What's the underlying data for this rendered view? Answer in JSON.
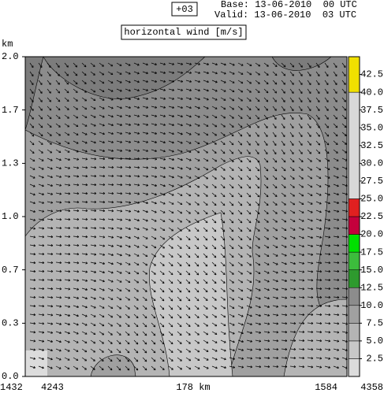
{
  "header": {
    "forecast_step": "+03",
    "base": "Base: 13-06-2010  00 UTC",
    "valid": "Valid: 13-06-2010  03 UTC",
    "title": "horizontal wind [m/s]"
  },
  "plot": {
    "y_label": "km",
    "ylim": [
      0,
      2
    ],
    "yticks": [
      {
        "value": 0,
        "label": "0.0"
      },
      {
        "value": 0.333,
        "label": "0.3"
      },
      {
        "value": 0.667,
        "label": "0.7"
      },
      {
        "value": 1,
        "label": "1.0"
      },
      {
        "value": 1.333,
        "label": "1.3"
      },
      {
        "value": 1.667,
        "label": "1.7"
      },
      {
        "value": 2,
        "label": "2.0"
      }
    ],
    "x_labels": [
      "1432",
      "4243",
      "178 km",
      "1584",
      "4358"
    ]
  },
  "colorbar": {
    "lim": [
      0,
      45
    ],
    "ticks": [
      2.5,
      {
        "value": 5,
        "label": "5.0"
      },
      7.5,
      {
        "value": 10,
        "label": "10.0"
      },
      12.5,
      {
        "value": 15,
        "label": "15.0"
      },
      17.5,
      {
        "value": 20,
        "label": "20.0"
      },
      22.5,
      {
        "value": 25,
        "label": "25.0"
      },
      27.5,
      {
        "value": 30,
        "label": "30.0"
      },
      32.5,
      {
        "value": 35,
        "label": "35.0"
      },
      37.5,
      {
        "value": 40,
        "label": "40.0"
      },
      42.5
    ],
    "bands": [
      {
        "from": 0,
        "to": 2.5,
        "color": "#dcdcdc"
      },
      {
        "from": 2.5,
        "to": 5,
        "color": "#c8c8c8"
      },
      {
        "from": 5,
        "to": 7.5,
        "color": "#b4b4b4"
      },
      {
        "from": 7.5,
        "to": 10,
        "color": "#a0a0a0"
      },
      {
        "from": 10,
        "to": 12.5,
        "color": "#8c8c8c"
      },
      {
        "from": 12.5,
        "to": 15,
        "color": "#2e9a2e"
      },
      {
        "from": 15,
        "to": 17.5,
        "color": "#3cbc3c"
      },
      {
        "from": 17.5,
        "to": 20,
        "color": "#00e000"
      },
      {
        "from": 20,
        "to": 22.5,
        "color": "#c4003c"
      },
      {
        "from": 22.5,
        "to": 25,
        "color": "#e02020"
      },
      {
        "from": 25,
        "to": 40,
        "color": "#d8d8d8"
      },
      {
        "from": 40,
        "to": 45,
        "color": "#f0e000"
      }
    ]
  }
}
